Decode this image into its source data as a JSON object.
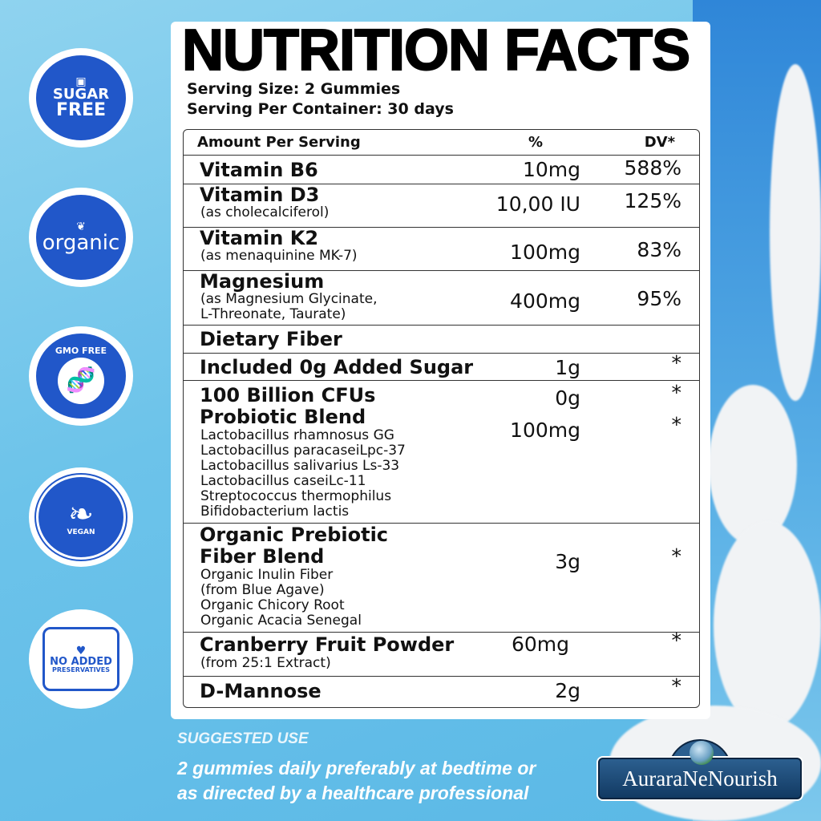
{
  "badges": [
    {
      "icon": "sugar-cube-icon",
      "line1": "SUGAR",
      "line2": "FREE"
    },
    {
      "icon": "leaf-icon",
      "line1": "organic"
    },
    {
      "icon": "dna-icon",
      "line1": "GMO FREE"
    },
    {
      "icon": "leaves-icon",
      "line1": "VEGAN"
    },
    {
      "icon": "leaf-icon",
      "line1": "NO ADDED",
      "line2": "PRESERVATIVES"
    }
  ],
  "title": "NUTRITION FACTS",
  "serving_size": "Serving Size: 2 Gummies",
  "serving_per_container": "Serving Per Container: 30 days",
  "table": {
    "headers": {
      "amount": "Amount Per Serving",
      "percent": "%",
      "dv": "DV*"
    },
    "rows": [
      {
        "name": "Vitamin B6",
        "amount": "10mg",
        "dv": "588%"
      },
      {
        "name": "Vitamin D3",
        "sub": "(as cholecalciferol)",
        "amount": "10,00 IU",
        "dv": "125%"
      },
      {
        "name": "Vitamin K2",
        "sub": "(as menaquinine MK-7)",
        "amount": "100mg",
        "dv": "83%"
      },
      {
        "name": "Magnesium",
        "sub": "(as Magnesium Glycinate,\nL-Threonate, Taurate)",
        "amount": "400mg",
        "dv": "95%"
      },
      {
        "name": "Dietary Fiber"
      },
      {
        "name": "Included 0g Added Sugar",
        "amount": "1g",
        "dv": "*"
      },
      {
        "name": "100 Billion CFUs",
        "amount": "0g",
        "dv": "*",
        "name2": "Probiotic Blend",
        "amount2": "100mg",
        "dv2": "*",
        "sub": "Lactobacillus rhamnosus GG\nLactobacillus paracaseiLpc-37\nLactobacillus salivarius Ls-33\nLactobacillus caseiLc-11\nStreptococcus thermophilus\nBifidobacterium lactis"
      },
      {
        "name": "Organic Prebiotic",
        "name2": "Fiber Blend",
        "sub": "Organic Inulin Fiber\n(from Blue Agave)\nOrganic Chicory Root\nOrganic Acacia Senegal",
        "amount": "3g",
        "dv": "*"
      },
      {
        "name": "Cranberry Fruit Powder",
        "sub": "(from 25:1 Extract)",
        "amount": "60mg",
        "dv": "*"
      },
      {
        "name": "D-Mannose",
        "amount": "2g",
        "dv": "*"
      }
    ]
  },
  "suggested_use": {
    "heading": "SUGGESTED USE",
    "line1": "2 gummies daily preferably at bedtime or",
    "line2": "as directed by a healthcare professional"
  },
  "brand": "AuraraNeNourish",
  "colors": {
    "badge_blue": "#2157c9",
    "background": "#6cc3ea",
    "logo_navy": "#123a63"
  }
}
